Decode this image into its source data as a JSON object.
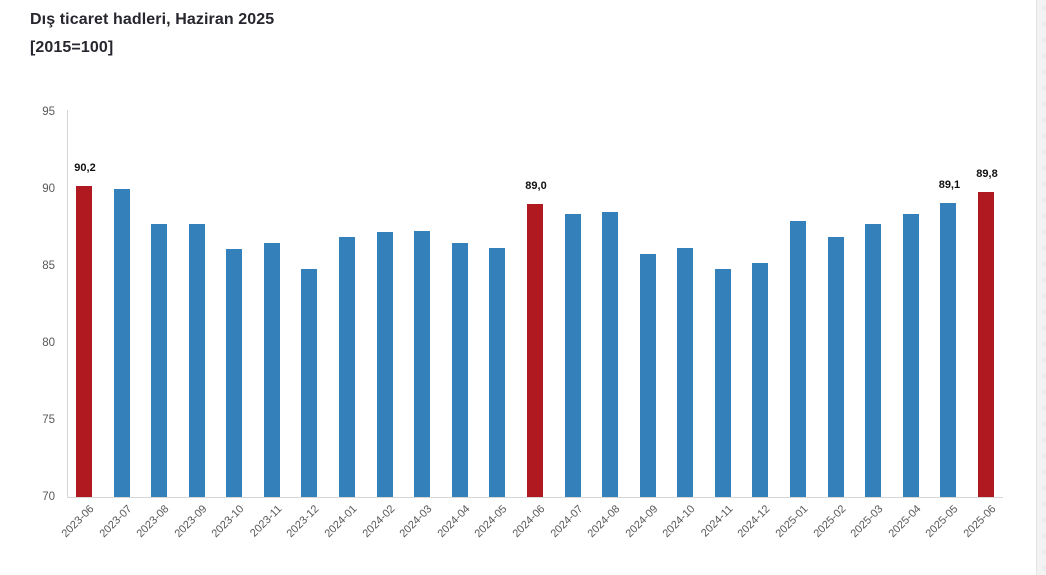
{
  "title": {
    "line1": "Dış ticaret hadleri, Haziran 2025",
    "line2": "[2015=100]"
  },
  "chart_data": {
    "type": "bar",
    "title": "Dış ticaret hadleri, Haziran 2025 [2015=100]",
    "xlabel": "",
    "ylabel": "",
    "categories": [
      "2023-06",
      "2023-07",
      "2023-08",
      "2023-09",
      "2023-10",
      "2023-11",
      "2023-12",
      "2024-01",
      "2024-02",
      "2024-03",
      "2024-04",
      "2024-05",
      "2024-06",
      "2024-07",
      "2024-08",
      "2024-09",
      "2024-10",
      "2024-11",
      "2024-12",
      "2025-01",
      "2025-02",
      "2025-03",
      "2025-04",
      "2025-05",
      "2025-06"
    ],
    "values": [
      90.2,
      90.0,
      87.7,
      87.7,
      86.1,
      86.5,
      84.8,
      86.9,
      87.2,
      87.3,
      86.5,
      86.2,
      89.0,
      88.4,
      88.5,
      85.8,
      86.2,
      84.8,
      85.2,
      87.9,
      86.9,
      87.7,
      88.4,
      89.1,
      89.8
    ],
    "highlighted_indexes": [
      0,
      12,
      24
    ],
    "data_labels": {
      "0": "90,2",
      "12": "89,0",
      "23": "89,1",
      "24": "89,8"
    },
    "ylim": [
      70,
      95
    ],
    "yticks": [
      70,
      75,
      80,
      85,
      90,
      95
    ],
    "grid": false,
    "legend": "none",
    "colors": {
      "bar": "#3380bb",
      "highlight": "#b0191f",
      "axis": "#d6d6d6",
      "tick_text": "#595959",
      "value_label_text": "#111111"
    }
  }
}
